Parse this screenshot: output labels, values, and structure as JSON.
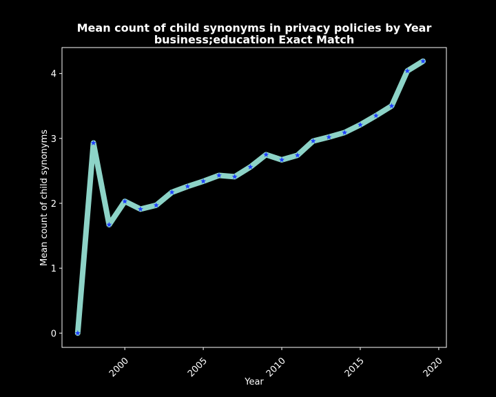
{
  "chart_data": {
    "type": "line",
    "title": "Mean count of child synonyms in privacy policies by Year",
    "subtitle": "business;education Exact Match",
    "xlabel": "Year",
    "ylabel": "Mean count of child synonyms",
    "xlim": [
      1996,
      2020
    ],
    "ylim": [
      -0.22,
      4.4
    ],
    "xticks": [
      2000,
      2005,
      2010,
      2015,
      2020
    ],
    "yticks": [
      0,
      1,
      2,
      3,
      4
    ],
    "grid": false,
    "line_color": "#8dd3c7",
    "marker_color": "#1f3fff",
    "background": "#000000",
    "series": [
      {
        "x": [
          1997,
          1998,
          1999,
          2000,
          2001,
          2002,
          2003,
          2004,
          2005,
          2006,
          2007,
          2008,
          2009,
          2010,
          2011,
          2012,
          2013,
          2014,
          2015,
          2016,
          2017,
          2018,
          2019
        ],
        "y": [
          0.0,
          2.93,
          1.67,
          2.03,
          1.91,
          1.97,
          2.17,
          2.26,
          2.34,
          2.43,
          2.41,
          2.56,
          2.75,
          2.67,
          2.74,
          2.96,
          3.02,
          3.09,
          3.21,
          3.35,
          3.5,
          4.04,
          4.19
        ]
      }
    ]
  }
}
